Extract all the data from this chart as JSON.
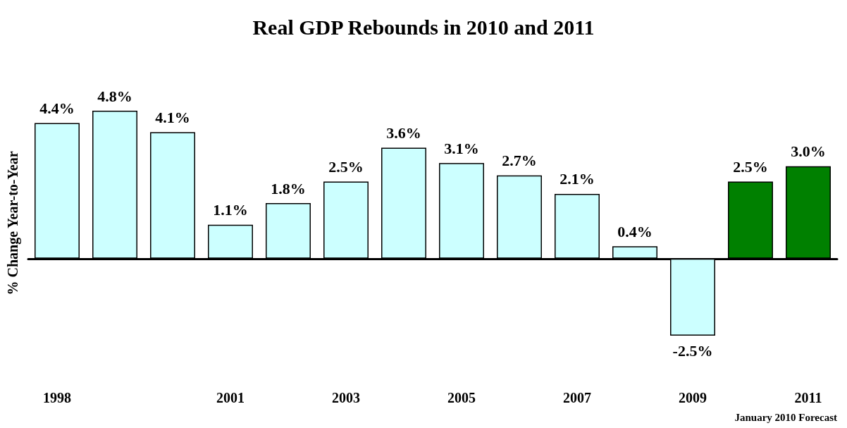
{
  "chart_data": {
    "type": "bar",
    "title": "Real GDP Rebounds in 2010 and 2011",
    "ylabel": "% Change Year-to-Year",
    "categories": [
      "1998",
      null,
      null,
      "2001",
      null,
      "2003",
      null,
      "2005",
      null,
      "2007",
      null,
      "2009",
      null,
      "2011"
    ],
    "values": [
      4.4,
      4.8,
      4.1,
      1.1,
      1.8,
      2.5,
      3.6,
      3.1,
      2.7,
      2.1,
      0.4,
      -2.5,
      2.5,
      3.0
    ],
    "value_labels": [
      "4.4%",
      "4.8%",
      "4.1%",
      "1.1%",
      "1.8%",
      "2.5%",
      "3.6%",
      "3.1%",
      "2.7%",
      "2.1%",
      "0.4%",
      "-2.5%",
      "2.5%",
      "3.0%"
    ],
    "colors": [
      "#ccffff",
      "#ccffff",
      "#ccffff",
      "#ccffff",
      "#ccffff",
      "#ccffff",
      "#ccffff",
      "#ccffff",
      "#ccffff",
      "#ccffff",
      "#ccffff",
      "#ccffff",
      "#008000",
      "#008000"
    ],
    "annotations": [
      "January 2010 Forecast"
    ],
    "grid": false
  }
}
